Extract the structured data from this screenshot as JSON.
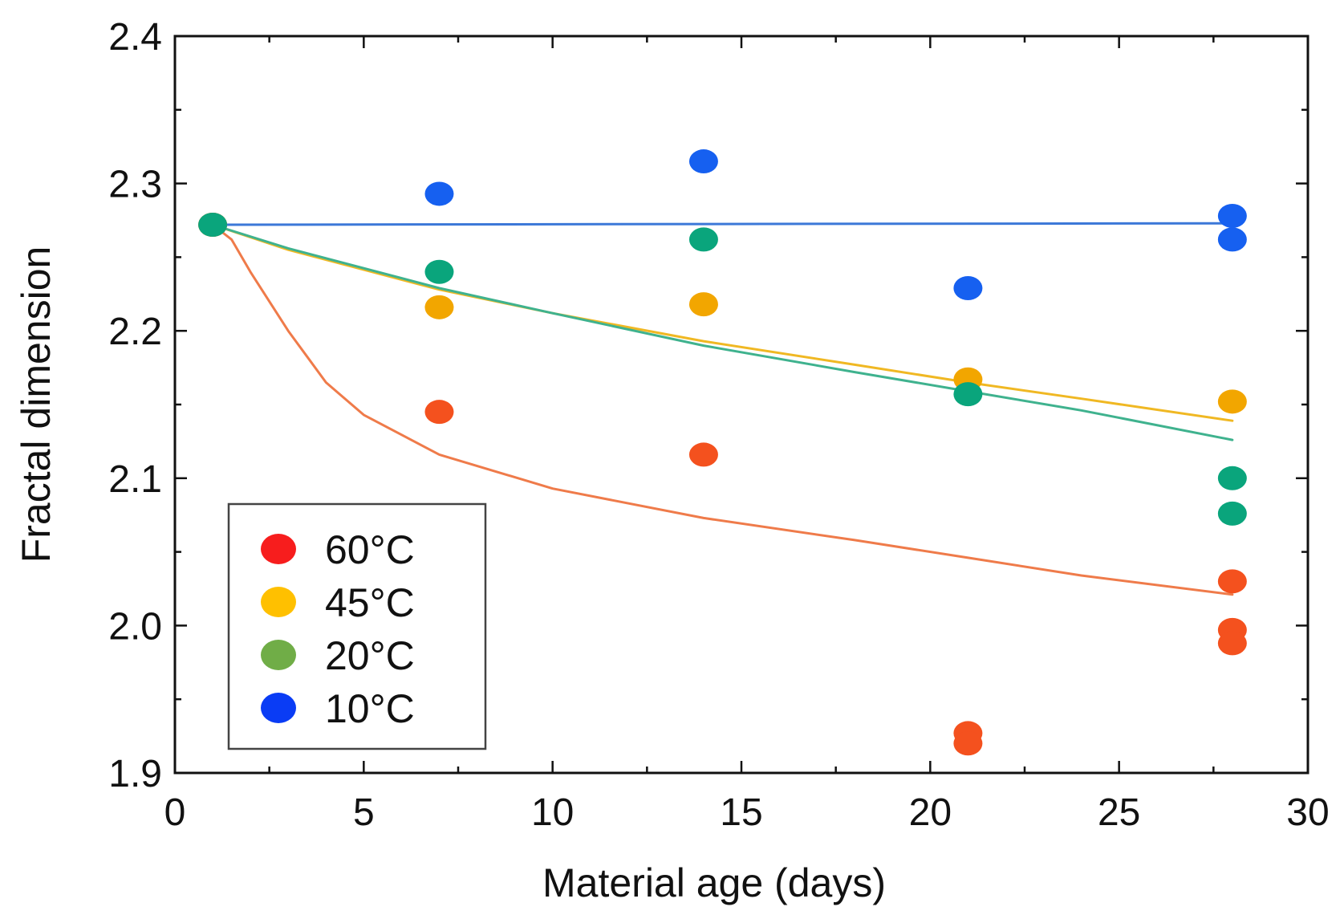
{
  "chart_data": {
    "type": "scatter",
    "title": "",
    "xlabel": "Material age (days)",
    "ylabel": "Fractal dimension",
    "xlim": [
      0,
      30
    ],
    "ylim": [
      1.9,
      2.4
    ],
    "xticks": [
      0,
      5,
      10,
      15,
      20,
      25,
      30
    ],
    "xtick_labels": [
      "0",
      "5",
      "10",
      "15",
      "20",
      "25",
      "30"
    ],
    "yticks": [
      1.9,
      2.0,
      2.1,
      2.2,
      2.3,
      2.4
    ],
    "ytick_labels": [
      "1.9",
      "2.0",
      "2.1",
      "2.2",
      "2.3",
      "2.4"
    ],
    "grid": false,
    "legend_position": "bottom-left",
    "series": [
      {
        "name": "60°C",
        "marker_color": "#f4511e",
        "legend_color": "#f71d1d",
        "line_color": "#ef7b4a",
        "points": [
          [
            1,
            2.272
          ],
          [
            7,
            2.145
          ],
          [
            14,
            2.116
          ],
          [
            21,
            1.927
          ],
          [
            21,
            1.92
          ],
          [
            28,
            2.03
          ],
          [
            28,
            1.997
          ],
          [
            28,
            1.988
          ]
        ],
        "fit": [
          [
            1,
            2.272
          ],
          [
            1.5,
            2.262
          ],
          [
            2,
            2.24
          ],
          [
            3,
            2.2
          ],
          [
            4,
            2.165
          ],
          [
            5,
            2.143
          ],
          [
            7,
            2.116
          ],
          [
            10,
            2.093
          ],
          [
            14,
            2.073
          ],
          [
            18,
            2.058
          ],
          [
            21,
            2.046
          ],
          [
            24,
            2.034
          ],
          [
            28,
            2.021
          ]
        ]
      },
      {
        "name": "45°C",
        "marker_color": "#f2a600",
        "legend_color": "#ffc000",
        "line_color": "#f0b823",
        "points": [
          [
            1,
            2.272
          ],
          [
            7,
            2.216
          ],
          [
            14,
            2.218
          ],
          [
            21,
            2.167
          ],
          [
            28,
            2.152
          ]
        ],
        "fit": [
          [
            1,
            2.272
          ],
          [
            3,
            2.255
          ],
          [
            7,
            2.228
          ],
          [
            10,
            2.212
          ],
          [
            14,
            2.193
          ],
          [
            18,
            2.177
          ],
          [
            21,
            2.165
          ],
          [
            24,
            2.154
          ],
          [
            28,
            2.139
          ]
        ]
      },
      {
        "name": "20°C",
        "marker_color": "#0aa57c",
        "legend_color": "#70ad47",
        "line_color": "#3fb28e",
        "points": [
          [
            1,
            2.272
          ],
          [
            7,
            2.24
          ],
          [
            14,
            2.262
          ],
          [
            21,
            2.157
          ],
          [
            28,
            2.1
          ],
          [
            28,
            2.076
          ]
        ],
        "fit": [
          [
            1,
            2.272
          ],
          [
            3,
            2.256
          ],
          [
            7,
            2.229
          ],
          [
            10,
            2.212
          ],
          [
            14,
            2.19
          ],
          [
            18,
            2.172
          ],
          [
            21,
            2.159
          ],
          [
            24,
            2.146
          ],
          [
            28,
            2.126
          ]
        ]
      },
      {
        "name": "10°C",
        "marker_color": "#1660f0",
        "legend_color": "#0a3cf5",
        "line_color": "#3c78d8",
        "points": [
          [
            7,
            2.293
          ],
          [
            14,
            2.315
          ],
          [
            21,
            2.229
          ],
          [
            28,
            2.278
          ],
          [
            28,
            2.262
          ]
        ],
        "fit": [
          [
            1,
            2.272
          ],
          [
            28,
            2.273
          ]
        ]
      }
    ]
  }
}
